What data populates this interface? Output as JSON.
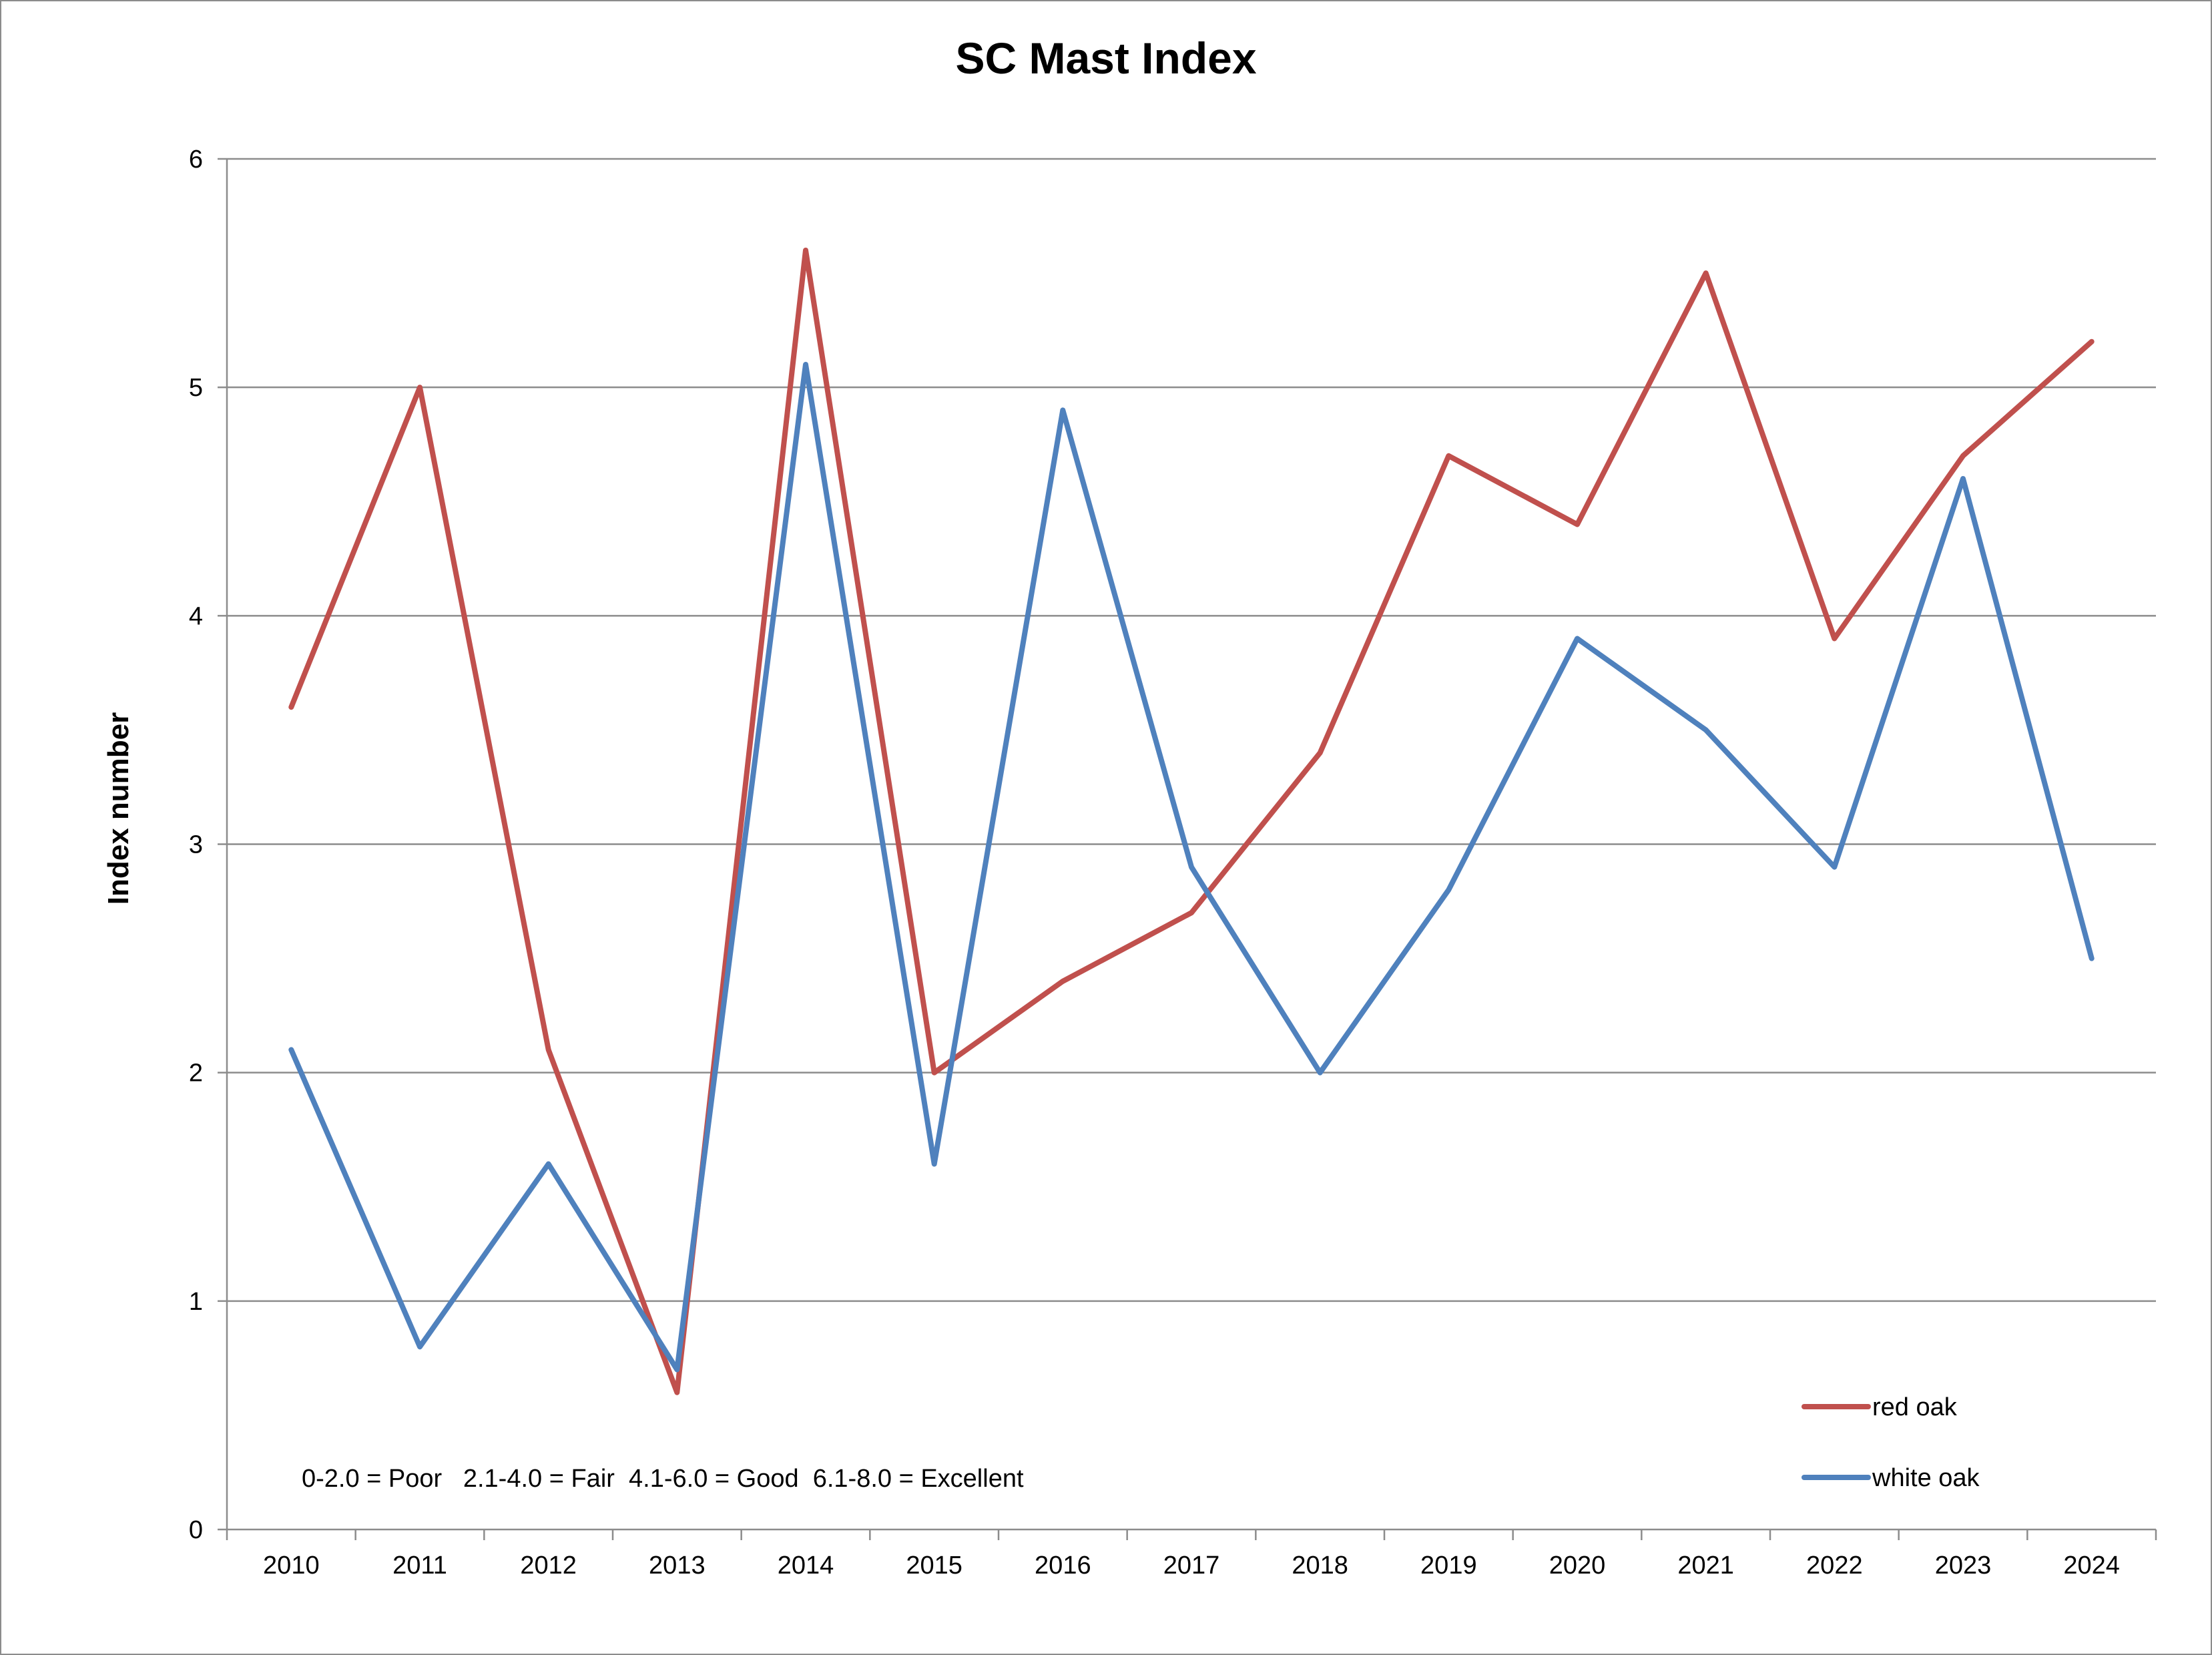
{
  "chart_data": {
    "type": "line",
    "title": "SC Mast Index",
    "xlabel": "",
    "ylabel": "Index number",
    "ylim": [
      0,
      6
    ],
    "yticks": [
      "0",
      "1",
      "2",
      "3",
      "4",
      "5",
      "6"
    ],
    "grid": true,
    "legend_position": "bottom-right",
    "categories": [
      "2010",
      "2011",
      "2012",
      "2013",
      "2014",
      "2015",
      "2016",
      "2017",
      "2018",
      "2019",
      "2020",
      "2021",
      "2022",
      "2023",
      "2024"
    ],
    "series": [
      {
        "name": "red oak",
        "color": "#c0504d",
        "values": [
          3.6,
          5.0,
          2.1,
          0.6,
          5.6,
          2.0,
          2.4,
          2.7,
          3.4,
          4.7,
          4.4,
          5.5,
          3.9,
          4.7,
          5.2
        ]
      },
      {
        "name": "white oak",
        "color": "#4f81bd",
        "values": [
          2.1,
          0.8,
          1.6,
          0.7,
          5.1,
          1.6,
          4.9,
          2.9,
          2.0,
          2.8,
          3.9,
          3.5,
          2.9,
          4.6,
          2.5
        ]
      }
    ],
    "annotation": "0-2.0 = Poor   2.1-4.0 = Fair  4.1-6.0 = Good  6.1-8.0 = Excellent"
  }
}
